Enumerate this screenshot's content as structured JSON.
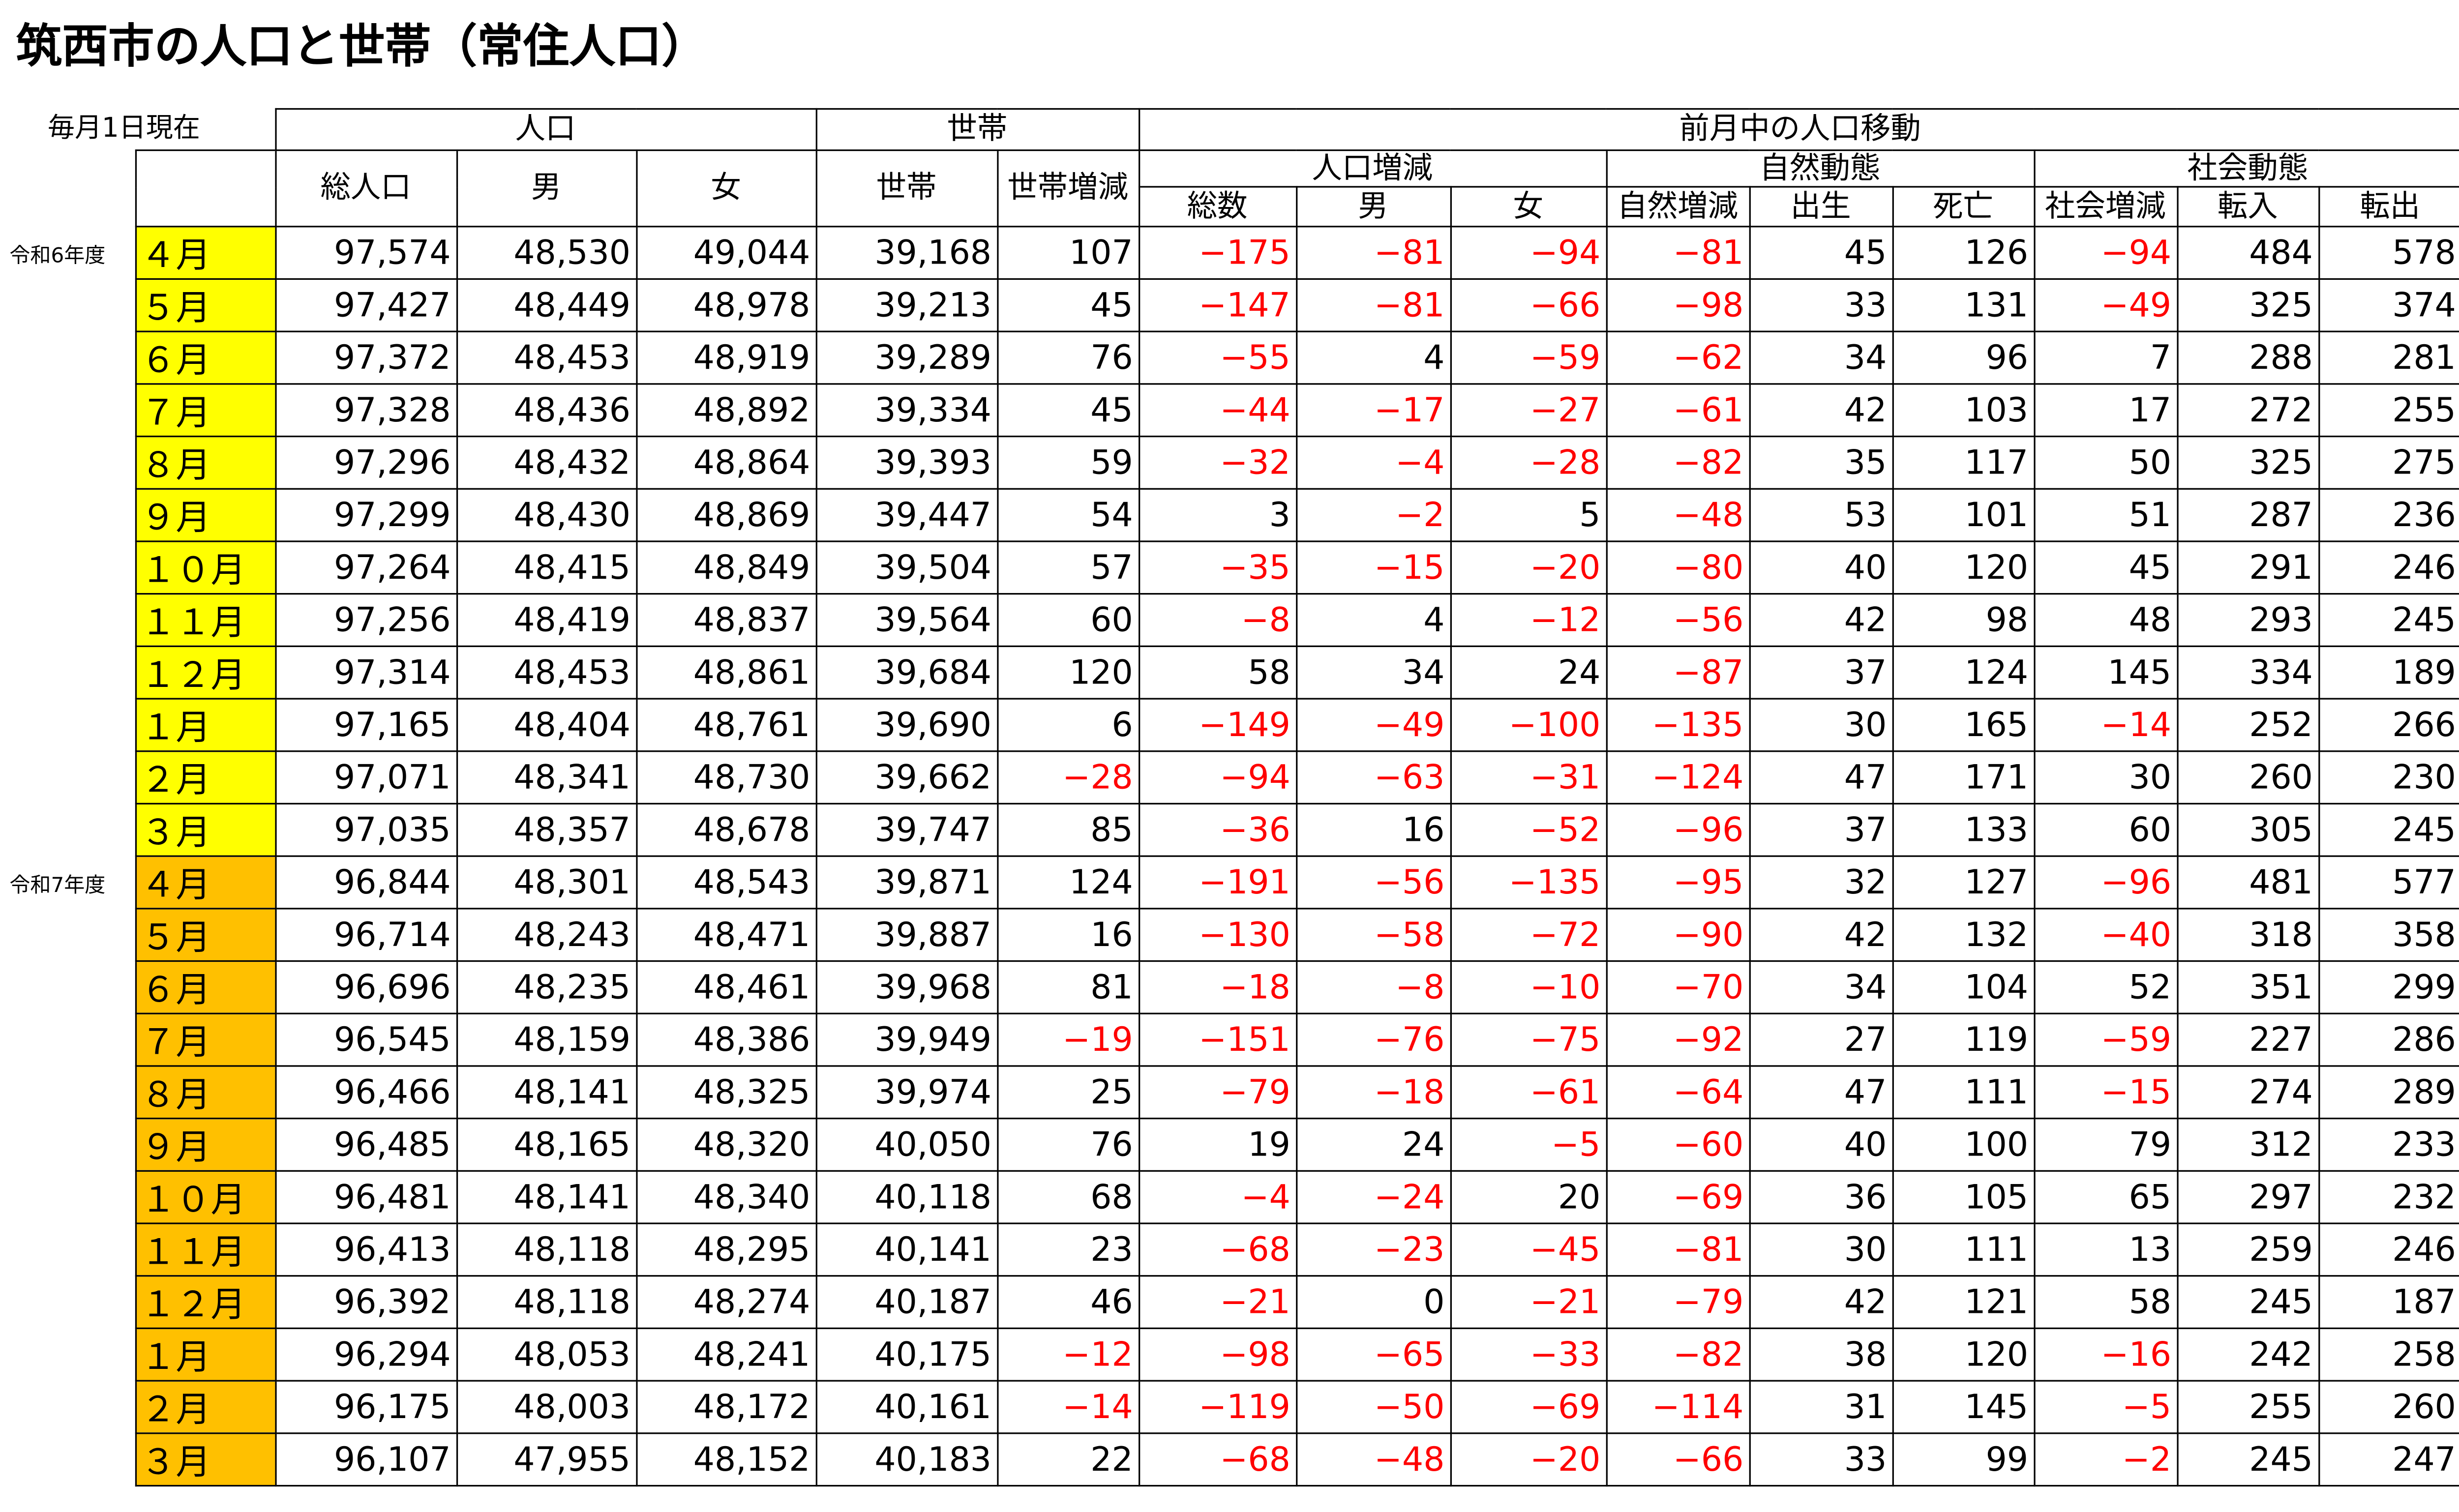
{
  "header": {
    "title": "筑西市の人口と世帯（常住人口）",
    "note": "毎月1日現在"
  },
  "table": {
    "negative_color": "#ff0000",
    "head_top": [
      {
        "label": "人口",
        "span": 3
      },
      {
        "label": "世帯",
        "span": 2
      },
      {
        "label": "前月中の人口移動",
        "span": 9
      }
    ],
    "head_mid": [
      {
        "label": "総人口",
        "span": 1,
        "rows": 2
      },
      {
        "label": "男",
        "span": 1,
        "rows": 2
      },
      {
        "label": "女",
        "span": 1,
        "rows": 2
      },
      {
        "label": "世帯",
        "span": 1,
        "rows": 2
      },
      {
        "label": "世帯増減",
        "span": 1,
        "rows": 2
      },
      {
        "label": "人口増減",
        "span": 3,
        "rows": 1
      },
      {
        "label": "自然動態",
        "span": 3,
        "rows": 1
      },
      {
        "label": "社会動態",
        "span": 3,
        "rows": 1
      }
    ],
    "head_low": [
      "総数",
      "男",
      "女",
      "自然増減",
      "出生",
      "死亡",
      "社会増減",
      "転入",
      "転出"
    ],
    "years": [
      {
        "label": "令和6年度",
        "color": "#ffff00",
        "rows": [
          {
            "month": "４月",
            "values": [
              "97,574",
              "48,530",
              "49,044",
              "39,168",
              "107",
              "−175",
              "−81",
              "−94",
              "−81",
              "45",
              "126",
              "−94",
              "484",
              "578"
            ]
          },
          {
            "month": "５月",
            "values": [
              "97,427",
              "48,449",
              "48,978",
              "39,213",
              "45",
              "−147",
              "−81",
              "−66",
              "−98",
              "33",
              "131",
              "−49",
              "325",
              "374"
            ]
          },
          {
            "month": "６月",
            "values": [
              "97,372",
              "48,453",
              "48,919",
              "39,289",
              "76",
              "−55",
              "4",
              "−59",
              "−62",
              "34",
              "96",
              "7",
              "288",
              "281"
            ]
          },
          {
            "month": "７月",
            "values": [
              "97,328",
              "48,436",
              "48,892",
              "39,334",
              "45",
              "−44",
              "−17",
              "−27",
              "−61",
              "42",
              "103",
              "17",
              "272",
              "255"
            ]
          },
          {
            "month": "８月",
            "values": [
              "97,296",
              "48,432",
              "48,864",
              "39,393",
              "59",
              "−32",
              "−4",
              "−28",
              "−82",
              "35",
              "117",
              "50",
              "325",
              "275"
            ]
          },
          {
            "month": "９月",
            "values": [
              "97,299",
              "48,430",
              "48,869",
              "39,447",
              "54",
              "3",
              "−2",
              "5",
              "−48",
              "53",
              "101",
              "51",
              "287",
              "236"
            ]
          },
          {
            "month": "１０月",
            "values": [
              "97,264",
              "48,415",
              "48,849",
              "39,504",
              "57",
              "−35",
              "−15",
              "−20",
              "−80",
              "40",
              "120",
              "45",
              "291",
              "246"
            ]
          },
          {
            "month": "１１月",
            "values": [
              "97,256",
              "48,419",
              "48,837",
              "39,564",
              "60",
              "−8",
              "4",
              "−12",
              "−56",
              "42",
              "98",
              "48",
              "293",
              "245"
            ]
          },
          {
            "month": "１２月",
            "values": [
              "97,314",
              "48,453",
              "48,861",
              "39,684",
              "120",
              "58",
              "34",
              "24",
              "−87",
              "37",
              "124",
              "145",
              "334",
              "189"
            ]
          },
          {
            "month": "１月",
            "values": [
              "97,165",
              "48,404",
              "48,761",
              "39,690",
              "6",
              "−149",
              "−49",
              "−100",
              "−135",
              "30",
              "165",
              "−14",
              "252",
              "266"
            ]
          },
          {
            "month": "２月",
            "values": [
              "97,071",
              "48,341",
              "48,730",
              "39,662",
              "−28",
              "−94",
              "−63",
              "−31",
              "−124",
              "47",
              "171",
              "30",
              "260",
              "230"
            ]
          },
          {
            "month": "３月",
            "values": [
              "97,035",
              "48,357",
              "48,678",
              "39,747",
              "85",
              "−36",
              "16",
              "−52",
              "−96",
              "37",
              "133",
              "60",
              "305",
              "245"
            ]
          }
        ]
      },
      {
        "label": "令和7年度",
        "color": "#ffc000",
        "rows": [
          {
            "month": "４月",
            "values": [
              "96,844",
              "48,301",
              "48,543",
              "39,871",
              "124",
              "−191",
              "−56",
              "−135",
              "−95",
              "32",
              "127",
              "−96",
              "481",
              "577"
            ]
          },
          {
            "month": "５月",
            "values": [
              "96,714",
              "48,243",
              "48,471",
              "39,887",
              "16",
              "−130",
              "−58",
              "−72",
              "−90",
              "42",
              "132",
              "−40",
              "318",
              "358"
            ]
          },
          {
            "month": "６月",
            "values": [
              "96,696",
              "48,235",
              "48,461",
              "39,968",
              "81",
              "−18",
              "−8",
              "−10",
              "−70",
              "34",
              "104",
              "52",
              "351",
              "299"
            ]
          },
          {
            "month": "７月",
            "values": [
              "96,545",
              "48,159",
              "48,386",
              "39,949",
              "−19",
              "−151",
              "−76",
              "−75",
              "−92",
              "27",
              "119",
              "−59",
              "227",
              "286"
            ]
          },
          {
            "month": "８月",
            "values": [
              "96,466",
              "48,141",
              "48,325",
              "39,974",
              "25",
              "−79",
              "−18",
              "−61",
              "−64",
              "47",
              "111",
              "−15",
              "274",
              "289"
            ]
          },
          {
            "month": "９月",
            "values": [
              "96,485",
              "48,165",
              "48,320",
              "40,050",
              "76",
              "19",
              "24",
              "−5",
              "−60",
              "40",
              "100",
              "79",
              "312",
              "233"
            ]
          },
          {
            "month": "１０月",
            "values": [
              "96,481",
              "48,141",
              "48,340",
              "40,118",
              "68",
              "−4",
              "−24",
              "20",
              "−69",
              "36",
              "105",
              "65",
              "297",
              "232"
            ]
          },
          {
            "month": "１１月",
            "values": [
              "96,413",
              "48,118",
              "48,295",
              "40,141",
              "23",
              "−68",
              "−23",
              "−45",
              "−81",
              "30",
              "111",
              "13",
              "259",
              "246"
            ]
          },
          {
            "month": "１２月",
            "values": [
              "96,392",
              "48,118",
              "48,274",
              "40,187",
              "46",
              "−21",
              "0",
              "−21",
              "−79",
              "42",
              "121",
              "58",
              "245",
              "187"
            ]
          },
          {
            "month": "１月",
            "values": [
              "96,294",
              "48,053",
              "48,241",
              "40,175",
              "−12",
              "−98",
              "−65",
              "−33",
              "−82",
              "38",
              "120",
              "−16",
              "242",
              "258"
            ]
          },
          {
            "month": "２月",
            "values": [
              "96,175",
              "48,003",
              "48,172",
              "40,161",
              "−14",
              "−119",
              "−50",
              "−69",
              "−114",
              "31",
              "145",
              "−5",
              "255",
              "260"
            ]
          },
          {
            "month": "３月",
            "values": [
              "96,107",
              "47,955",
              "48,152",
              "40,183",
              "22",
              "−68",
              "−48",
              "−20",
              "−66",
              "33",
              "99",
              "−2",
              "245",
              "247"
            ]
          }
        ]
      }
    ]
  }
}
